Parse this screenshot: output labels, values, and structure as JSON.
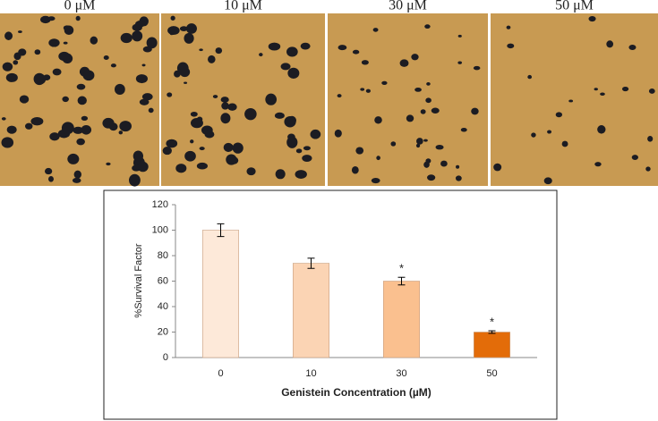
{
  "images": [
    {
      "label": "0 μM"
    },
    {
      "label": "10 μM"
    },
    {
      "label": "30 μM"
    },
    {
      "label": "50 μM"
    }
  ],
  "chart_data": {
    "type": "bar",
    "categories": [
      "0",
      "10",
      "30",
      "50"
    ],
    "values": [
      100,
      74,
      60,
      20
    ],
    "errors": [
      5,
      4,
      3,
      1
    ],
    "significance": [
      null,
      null,
      "*",
      "*"
    ],
    "colors": [
      "#fde9d9",
      "#fbd4b4",
      "#fac08f",
      "#e36c09"
    ],
    "y_label": "%Survival  Factor",
    "x_label": "Genistein Concentration (µM)",
    "ylim": [
      0,
      120
    ],
    "yticks": [
      0,
      20,
      40,
      60,
      80,
      100,
      120
    ],
    "grid": false
  }
}
